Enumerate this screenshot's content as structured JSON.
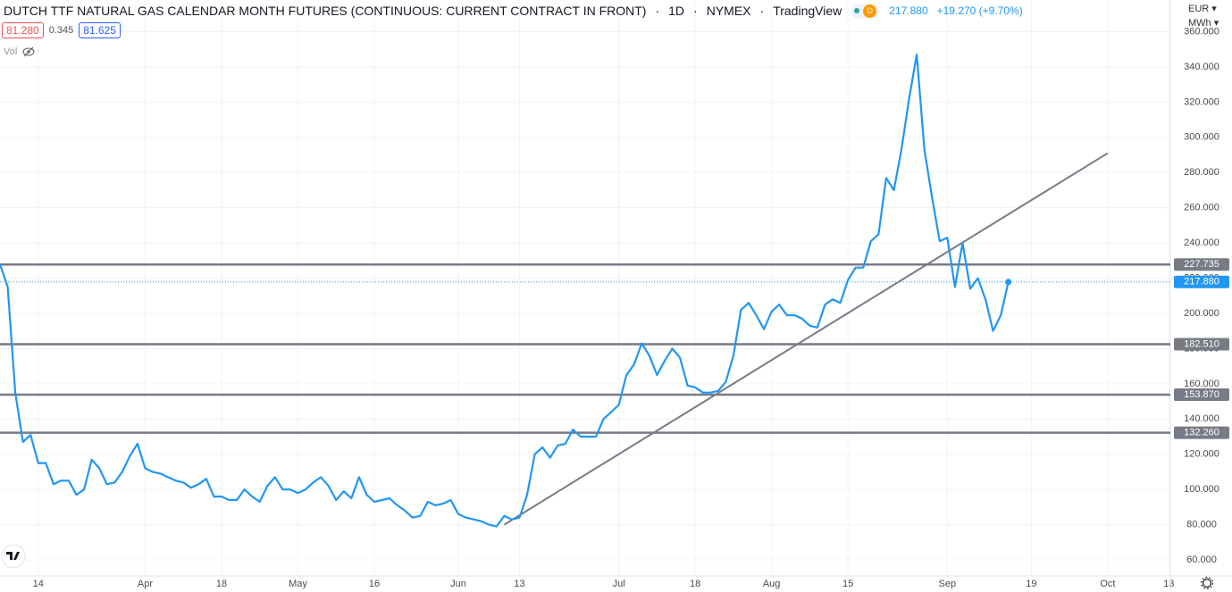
{
  "chart_data": {
    "type": "line",
    "title": "DUTCH TTF NATURAL GAS CALENDAR MONTH FUTURES (CONTINUOUS: CURRENT CONTRACT IN FRONT)",
    "interval": "1D",
    "exchange": "NYMEX",
    "source": "TradingView",
    "badge": "D",
    "change": "+19.270 (+9.70%)",
    "bid": "81.280",
    "spread": "0.345",
    "ask": "81.625",
    "volume_label": "Vol",
    "currency": "EUR",
    "unit": "MWh",
    "color": "#2196f3",
    "level_color": "#787b86",
    "grid": true,
    "x": [
      0,
      1,
      2,
      3,
      4,
      5,
      6,
      7,
      8,
      9,
      10,
      11,
      12,
      13,
      14,
      15,
      16,
      17,
      18,
      19,
      20,
      21,
      22,
      23,
      24,
      25,
      26,
      27,
      28,
      29,
      30,
      31,
      32,
      33,
      34,
      35,
      36,
      37,
      38,
      39,
      40,
      41,
      42,
      43,
      44,
      45,
      46,
      47,
      48,
      49,
      50,
      51,
      52,
      53,
      54,
      55,
      56,
      57,
      58,
      59,
      60,
      61,
      62,
      63,
      64,
      65,
      66,
      67,
      68,
      69,
      70,
      71,
      72,
      73,
      74,
      75,
      76,
      77,
      78,
      79,
      80,
      81,
      82,
      83,
      84,
      85,
      86,
      87,
      88,
      89,
      90,
      91,
      92,
      93,
      94,
      95,
      96,
      97,
      98,
      99,
      100,
      101,
      102,
      103,
      104,
      105,
      106,
      107,
      108,
      109,
      110,
      111,
      112,
      113,
      114,
      115,
      116,
      117,
      118,
      119,
      120,
      121,
      122,
      123,
      124,
      125,
      126,
      127,
      128,
      129,
      130,
      131,
      132
    ],
    "values": [
      228,
      215,
      155,
      127,
      131,
      115,
      115,
      103,
      105,
      105,
      97,
      100,
      117,
      112,
      103,
      104,
      110,
      119,
      126,
      112,
      110,
      109,
      107,
      105,
      104,
      101,
      103,
      106,
      96,
      96,
      94,
      94,
      100,
      96,
      93,
      102,
      107,
      100,
      100,
      98,
      100,
      104,
      107,
      102,
      94,
      99,
      95,
      107,
      97,
      93,
      94,
      95,
      91,
      88,
      84,
      85,
      93,
      91,
      92,
      94,
      86,
      84,
      83,
      82,
      80,
      79,
      85,
      83,
      84,
      97,
      120,
      124,
      118,
      125,
      126,
      134,
      130,
      130,
      130,
      140,
      144,
      148,
      165,
      171,
      183,
      176,
      165,
      173,
      180,
      175,
      159,
      158,
      155,
      155,
      156,
      161,
      176,
      202,
      206,
      199,
      191,
      201,
      205,
      199,
      199,
      197,
      193,
      192,
      205,
      208,
      206,
      219,
      226,
      226,
      241,
      245,
      277,
      270,
      293,
      322,
      347,
      293,
      266,
      241,
      243,
      215,
      240,
      214,
      220,
      208,
      190,
      199,
      217.88
    ],
    "last_price": {
      "value": 217.88,
      "label": "217.880"
    },
    "levels": [
      {
        "value": 227.735,
        "label": "227.735"
      },
      {
        "value": 182.51,
        "label": "182.510"
      },
      {
        "value": 153.87,
        "label": "153.870"
      },
      {
        "value": 132.26,
        "label": "132.260"
      }
    ],
    "trendline": {
      "x": [
        66,
        145
      ],
      "values": [
        80,
        291
      ]
    },
    "xlim": [
      0,
      153.2
    ],
    "xticks": [
      {
        "value": 5,
        "label": "14"
      },
      {
        "value": 19,
        "label": "Apr"
      },
      {
        "value": 29,
        "label": "18"
      },
      {
        "value": 39,
        "label": "May"
      },
      {
        "value": 49,
        "label": "16"
      },
      {
        "value": 60,
        "label": "Jun"
      },
      {
        "value": 68,
        "label": "13"
      },
      {
        "value": 81,
        "label": "Jul"
      },
      {
        "value": 91,
        "label": "18"
      },
      {
        "value": 101,
        "label": "Aug"
      },
      {
        "value": 111,
        "label": "15"
      },
      {
        "value": 124,
        "label": "Sep"
      },
      {
        "value": 135,
        "label": "19"
      },
      {
        "value": 145,
        "label": "Oct"
      },
      {
        "value": 153,
        "label": "13"
      }
    ],
    "ylim": [
      50.9,
      378
    ],
    "yticks": [
      {
        "value": 60,
        "label": "60.000"
      },
      {
        "value": 80,
        "label": "80.000"
      },
      {
        "value": 100,
        "label": "100.000"
      },
      {
        "value": 120,
        "label": "120.000"
      },
      {
        "value": 140,
        "label": "140.000"
      },
      {
        "value": 160,
        "label": "160.000"
      },
      {
        "value": 180,
        "label": "180.000"
      },
      {
        "value": 200,
        "label": "200.000"
      },
      {
        "value": 220,
        "label": "220.000"
      },
      {
        "value": 240,
        "label": "240.000"
      },
      {
        "value": 260,
        "label": "260.000"
      },
      {
        "value": 280,
        "label": "280.000"
      },
      {
        "value": 300,
        "label": "300.000"
      },
      {
        "value": 320,
        "label": "320.000"
      },
      {
        "value": 340,
        "label": "340.000"
      },
      {
        "value": 360,
        "label": "360.000"
      }
    ]
  }
}
